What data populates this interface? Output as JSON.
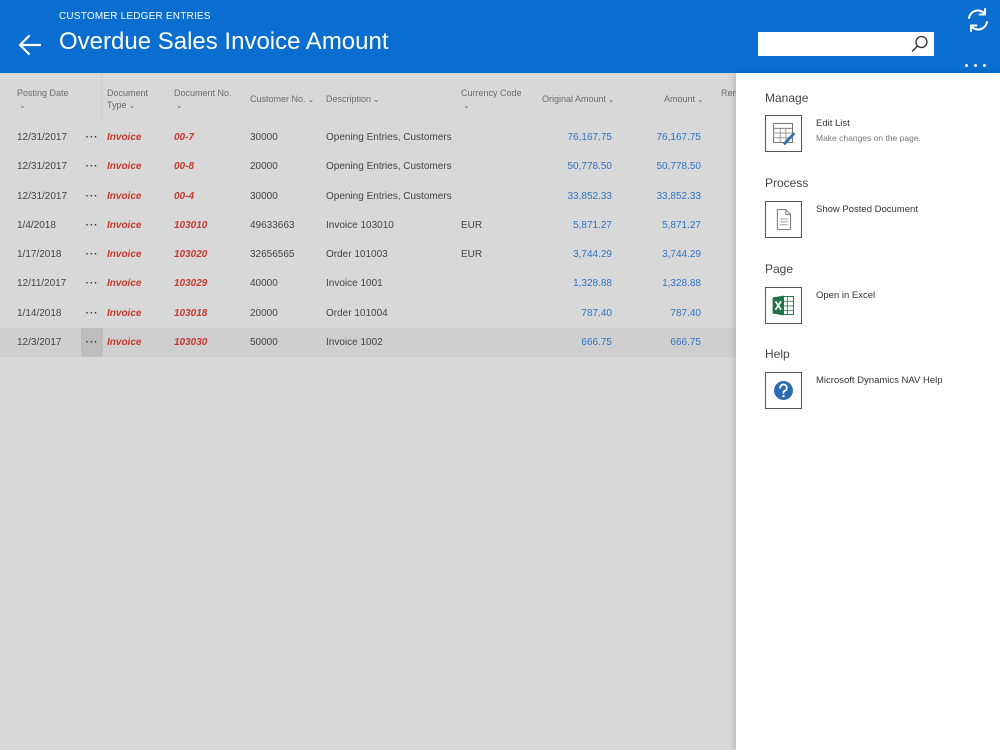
{
  "header": {
    "overline": "CUSTOMER LEDGER ENTRIES",
    "title": "Overdue Sales Invoice Amount",
    "search_value": "",
    "search_placeholder": ""
  },
  "columns": {
    "posting_date": "Posting Date",
    "document_type_line1": "Document",
    "document_type_line2": "Type",
    "document_no": "Document No.",
    "customer_no": "Customer No.",
    "description": "Description",
    "currency_code": "Currency Code",
    "original_amount": "Original Amount",
    "amount": "Amount",
    "remaining_truncated": "Rem"
  },
  "rows": [
    {
      "date": "12/31/2017",
      "dots": "···",
      "type": "Invoice",
      "no": "00-7",
      "cust": "30000",
      "desc": "Opening Entries, Customers",
      "cur": "",
      "orig": "76,167.75",
      "amt": "76,167.75"
    },
    {
      "date": "12/31/2017",
      "dots": "···",
      "type": "Invoice",
      "no": "00-8",
      "cust": "20000",
      "desc": "Opening Entries, Customers",
      "cur": "",
      "orig": "50,778.50",
      "amt": "50,778.50"
    },
    {
      "date": "12/31/2017",
      "dots": "···",
      "type": "Invoice",
      "no": "00-4",
      "cust": "30000",
      "desc": "Opening Entries, Customers",
      "cur": "",
      "orig": "33,852.33",
      "amt": "33,852.33"
    },
    {
      "date": "1/4/2018",
      "dots": "···",
      "type": "Invoice",
      "no": "103010",
      "cust": "49633663",
      "desc": "Invoice 103010",
      "cur": "EUR",
      "orig": "5,871.27",
      "amt": "5,871.27"
    },
    {
      "date": "1/17/2018",
      "dots": "···",
      "type": "Invoice",
      "no": "103020",
      "cust": "32656565",
      "desc": "Order 101003",
      "cur": "EUR",
      "orig": "3,744.29",
      "amt": "3,744.29"
    },
    {
      "date": "12/11/2017",
      "dots": "···",
      "type": "Invoice",
      "no": "103029",
      "cust": "40000",
      "desc": "Invoice 1001",
      "cur": "",
      "orig": "1,328.88",
      "amt": "1,328.88"
    },
    {
      "date": "1/14/2018",
      "dots": "···",
      "type": "Invoice",
      "no": "103018",
      "cust": "20000",
      "desc": "Order 101004",
      "cur": "",
      "orig": "787.40",
      "amt": "787.40"
    },
    {
      "date": "12/3/2017",
      "dots": "···",
      "type": "Invoice",
      "no": "103030",
      "cust": "50000",
      "desc": "Invoice 1002",
      "cur": "",
      "orig": "666.75",
      "amt": "666.75"
    }
  ],
  "pane": {
    "manage": {
      "title": "Manage",
      "edit_list": "Edit List",
      "edit_list_sub": "Make changes on the page."
    },
    "process": {
      "title": "Process",
      "show_posted": "Show Posted Document"
    },
    "page": {
      "title": "Page",
      "open_excel": "Open in Excel"
    },
    "help": {
      "title": "Help",
      "nav_help": "Microsoft Dynamics NAV Help"
    }
  },
  "icons": {
    "back": "arrow-left-icon",
    "search": "search-icon",
    "refresh": "refresh-icon",
    "more": "more-icon",
    "edit_list": "edit-list-icon",
    "document": "document-icon",
    "excel": "excel-icon",
    "help": "help-icon"
  },
  "colors": {
    "header": "#0a6ed1",
    "link_red": "#c23b2f",
    "amount_blue": "#2f73c2",
    "excel_green": "#1e7145",
    "help_blue": "#2b6cb0"
  }
}
